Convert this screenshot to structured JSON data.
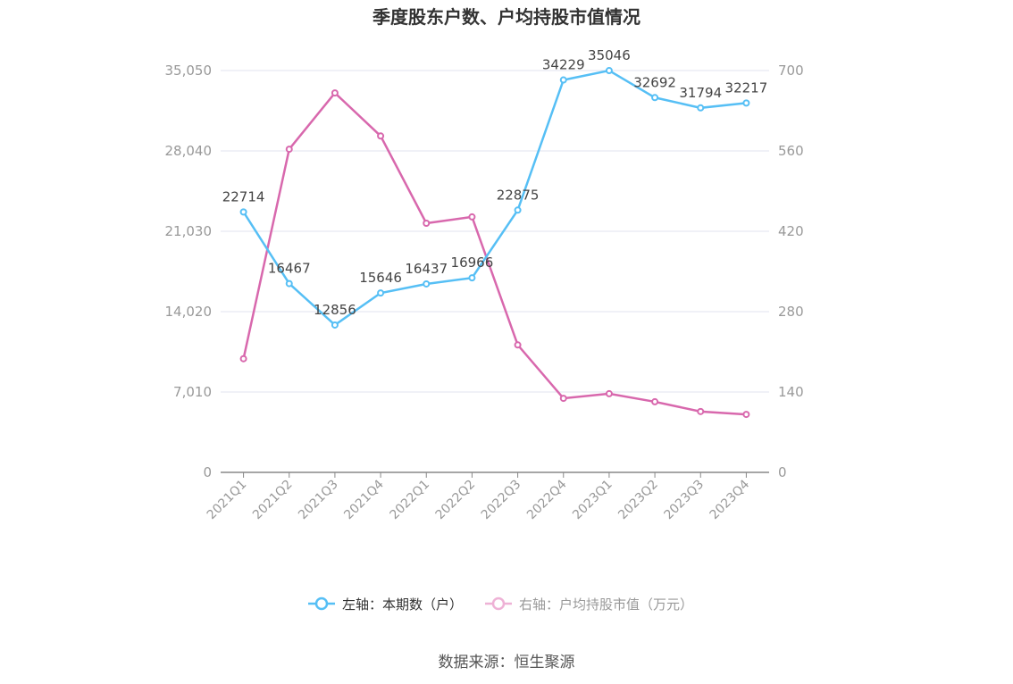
{
  "chart_data": {
    "type": "line",
    "title": "季度股东户数、户均持股市值情况",
    "categories": [
      "2021Q1",
      "2021Q2",
      "2021Q3",
      "2021Q4",
      "2022Q1",
      "2022Q2",
      "2022Q3",
      "2022Q4",
      "2023Q1",
      "2023Q2",
      "2023Q3",
      "2023Q4"
    ],
    "left_axis": {
      "ylim": [
        0,
        35050
      ],
      "ticks": [
        "0",
        "7,010",
        "14,020",
        "21,030",
        "28,040",
        "35,050"
      ]
    },
    "right_axis": {
      "ylim": [
        0,
        700
      ],
      "ticks": [
        "0",
        "140",
        "280",
        "420",
        "560",
        "700"
      ]
    },
    "series": [
      {
        "name": "左轴：本期数（户）",
        "axis": "left",
        "color": "#56bff5",
        "values": [
          22714,
          16467,
          12856,
          15646,
          16437,
          16966,
          22875,
          34229,
          35046,
          32692,
          31794,
          32217
        ],
        "show_labels": true
      },
      {
        "name": "右轴：户均持股市值（万元）",
        "axis": "right",
        "color": "#d868ad",
        "values": [
          198,
          563,
          661,
          586,
          434,
          445,
          222,
          129,
          137,
          123,
          106,
          101
        ],
        "show_labels": false
      }
    ],
    "grid": true,
    "legend": "bottom",
    "source": "数据来源：恒生聚源"
  }
}
